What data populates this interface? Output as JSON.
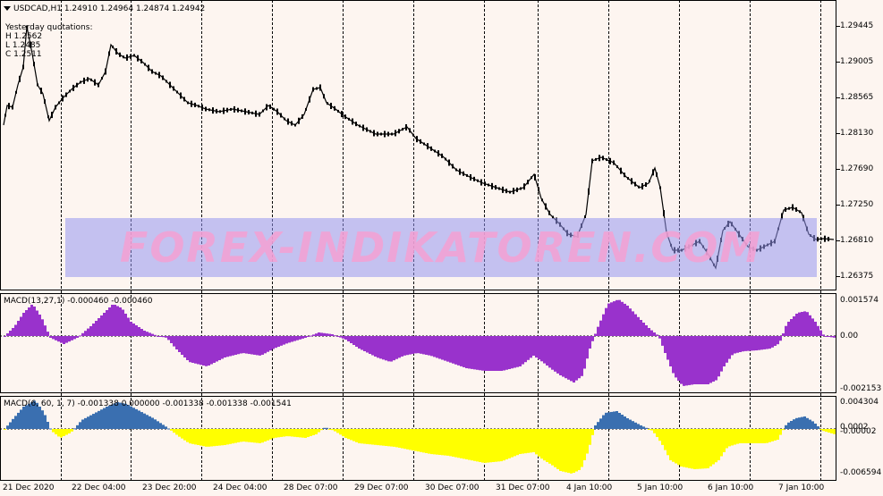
{
  "main": {
    "symbol_header": "USDCAD,H1  1.24910 1.24964 1.24874 1.24942",
    "yesterday_title": "Yesterday quotations:",
    "yesterday_h": "H 1.2562",
    "yesterday_l": "L 1.2485",
    "yesterday_c": "C 1.2511",
    "price_labels": [
      "1.29445",
      "1.29005",
      "1.28565",
      "1.28130",
      "1.27690",
      "1.27250",
      "1.26810",
      "1.26375"
    ]
  },
  "watermark": "FOREX-INDIKATOREN.COM",
  "macd1": {
    "header": "MACD(13,27,1) -0.000460 -0.000460",
    "labels": [
      "0.001574",
      "0.00",
      "-0.002153"
    ],
    "color": "#9932cc"
  },
  "macd2": {
    "header": "MACD(6, 60, 1, 7) -0.001338 0.000000 -0.001338 -0.001338 -0.001541",
    "labels": [
      "0.004304",
      "0.0002",
      "-0.00002",
      "-0.006594"
    ],
    "up_color": "#3a6fb0",
    "down_color": "#ffff00"
  },
  "time_labels": [
    "21 Dec 2020",
    "22 Dec 04:00",
    "23 Dec 20:00",
    "24 Dec 04:00",
    "28 Dec 07:00",
    "29 Dec 07:00",
    "30 Dec 07:00",
    "31 Dec 07:00",
    "4 Jan 10:00",
    "5 Jan 10:00",
    "6 Jan 10:00",
    "7 Jan 10:00"
  ]
}
